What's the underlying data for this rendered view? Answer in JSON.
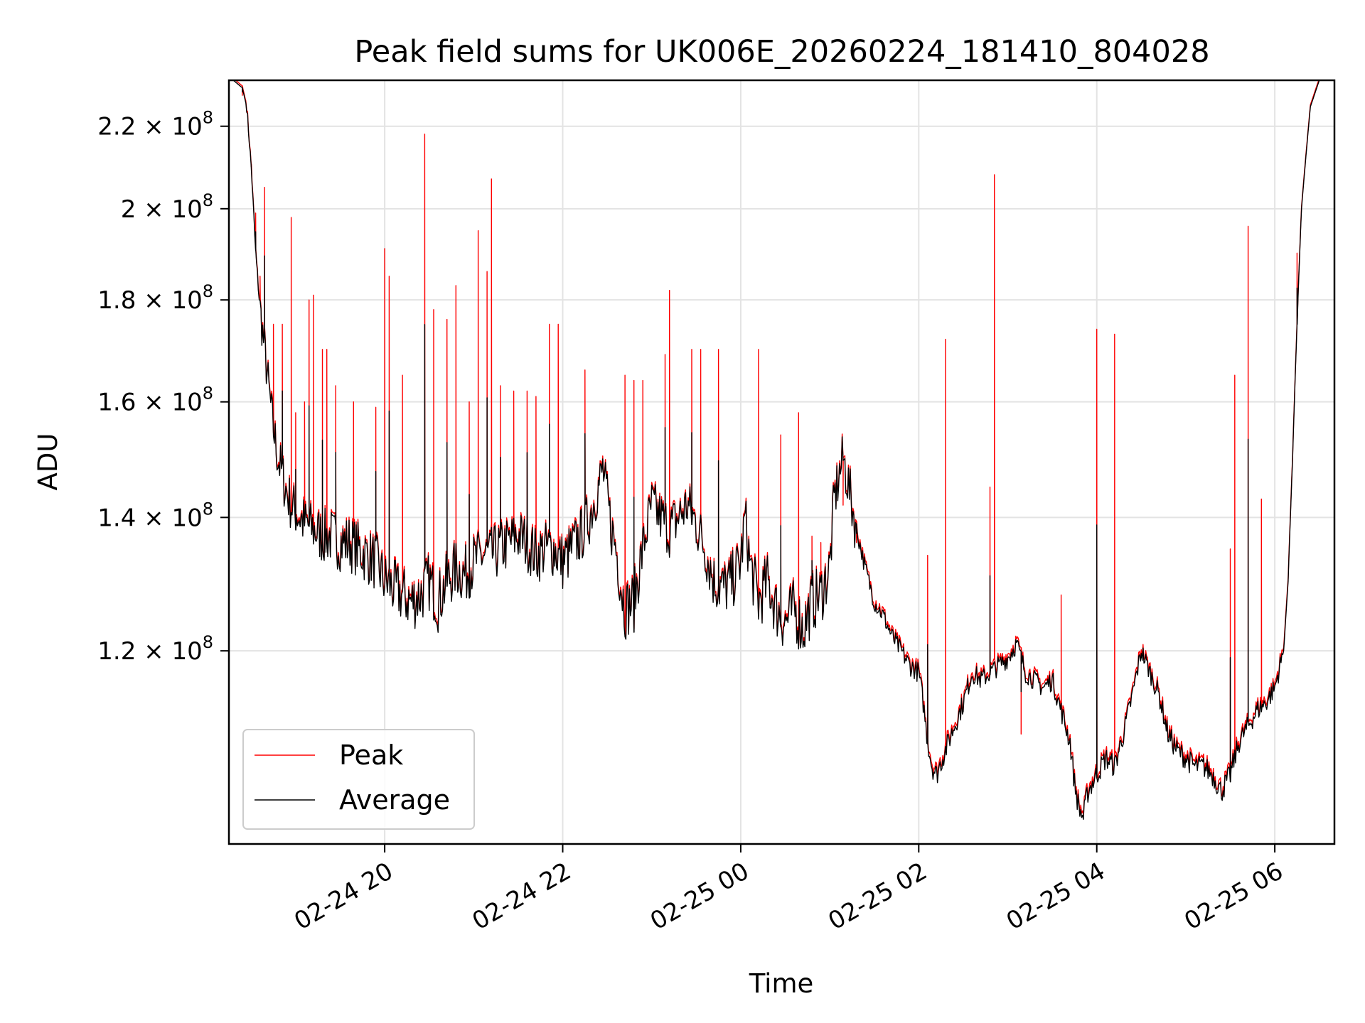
{
  "chart_data": {
    "type": "line",
    "title": "Peak field sums for UK006E_20260224_181410_804028",
    "xlabel": "Time",
    "ylabel": "ADU",
    "y_scale": "log",
    "ylim": [
      96000000,
      232000000
    ],
    "x_range_hours": [
      18.25,
      6.67
    ],
    "x_ticks": [
      {
        "label": "02-24 20",
        "hour": 20
      },
      {
        "label": "02-24 22",
        "hour": 22
      },
      {
        "label": "02-25 00",
        "hour": 24
      },
      {
        "label": "02-25 02",
        "hour": 26
      },
      {
        "label": "02-25 04",
        "hour": 28
      },
      {
        "label": "02-25 06",
        "hour": 30
      }
    ],
    "y_ticks": [
      {
        "mantissa": "1.2",
        "exponent": "8",
        "value": 120000000
      },
      {
        "mantissa": "1.4",
        "exponent": "8",
        "value": 140000000
      },
      {
        "mantissa": "1.6",
        "exponent": "8",
        "value": 160000000
      },
      {
        "mantissa": "1.8",
        "exponent": "8",
        "value": 180000000
      },
      {
        "mantissa": "2",
        "exponent": "8",
        "value": 200000000
      },
      {
        "mantissa": "2.2",
        "exponent": "8",
        "value": 220000000
      }
    ],
    "grid": true,
    "legend_position": "lower-left",
    "series": [
      {
        "name": "Peak",
        "color": "#ff0000",
        "baseline": "average",
        "spikes": [
          [
            18.4,
            228
          ],
          [
            18.5,
            210
          ],
          [
            18.55,
            199
          ],
          [
            18.6,
            185
          ],
          [
            18.65,
            205
          ],
          [
            18.75,
            175
          ],
          [
            18.85,
            175
          ],
          [
            18.95,
            198
          ],
          [
            19.0,
            158
          ],
          [
            19.1,
            160
          ],
          [
            19.15,
            180
          ],
          [
            19.2,
            181
          ],
          [
            19.3,
            170
          ],
          [
            19.35,
            170
          ],
          [
            19.45,
            163
          ],
          [
            19.65,
            160
          ],
          [
            19.9,
            159
          ],
          [
            20.0,
            191
          ],
          [
            20.05,
            185
          ],
          [
            20.2,
            165
          ],
          [
            20.45,
            218
          ],
          [
            20.55,
            178
          ],
          [
            20.7,
            176
          ],
          [
            20.8,
            183
          ],
          [
            20.95,
            160
          ],
          [
            21.05,
            195
          ],
          [
            21.15,
            186
          ],
          [
            21.2,
            207
          ],
          [
            21.3,
            163
          ],
          [
            21.45,
            162
          ],
          [
            21.6,
            162
          ],
          [
            21.7,
            161
          ],
          [
            21.85,
            175
          ],
          [
            21.95,
            175
          ],
          [
            22.25,
            166
          ],
          [
            22.7,
            165
          ],
          [
            22.8,
            164
          ],
          [
            22.9,
            164
          ],
          [
            23.15,
            169
          ],
          [
            23.2,
            182
          ],
          [
            23.45,
            170
          ],
          [
            23.55,
            170
          ],
          [
            23.75,
            170
          ],
          [
            24.2,
            170
          ],
          [
            24.45,
            154
          ],
          [
            24.65,
            158
          ],
          [
            24.8,
            137
          ],
          [
            24.9,
            136
          ],
          [
            25.3,
            136
          ],
          [
            25.15,
            142
          ],
          [
            26.1,
            134
          ],
          [
            26.3,
            172
          ],
          [
            26.8,
            145
          ],
          [
            26.85,
            208
          ],
          [
            27.15,
            109
          ],
          [
            27.6,
            128
          ],
          [
            28.0,
            174
          ],
          [
            28.2,
            173
          ],
          [
            29.5,
            135
          ],
          [
            29.55,
            165
          ],
          [
            29.7,
            196
          ],
          [
            29.85,
            143
          ],
          [
            30.25,
            190
          ]
        ]
      },
      {
        "name": "Average",
        "color": "#000000",
        "points": [
          [
            18.25,
            232
          ],
          [
            18.3,
            232
          ],
          [
            18.4,
            230
          ],
          [
            18.45,
            225
          ],
          [
            18.5,
            210
          ],
          [
            18.55,
            190
          ],
          [
            18.6,
            178
          ],
          [
            18.65,
            170
          ],
          [
            18.7,
            162
          ],
          [
            18.75,
            155
          ],
          [
            18.8,
            150
          ],
          [
            18.85,
            147
          ],
          [
            18.9,
            144
          ],
          [
            18.95,
            142
          ],
          [
            19.0,
            141
          ],
          [
            19.1,
            139
          ],
          [
            19.2,
            138
          ],
          [
            19.3,
            137
          ],
          [
            19.4,
            137
          ],
          [
            19.5,
            136
          ],
          [
            19.6,
            136
          ],
          [
            19.7,
            135
          ],
          [
            19.8,
            134
          ],
          [
            19.9,
            133
          ],
          [
            20.0,
            130
          ],
          [
            20.1,
            129
          ],
          [
            20.2,
            128
          ],
          [
            20.3,
            127
          ],
          [
            20.4,
            128
          ],
          [
            20.5,
            130
          ],
          [
            20.6,
            127
          ],
          [
            20.7,
            130
          ],
          [
            20.8,
            132
          ],
          [
            20.9,
            131
          ],
          [
            21.0,
            133
          ],
          [
            21.1,
            134
          ],
          [
            21.2,
            134
          ],
          [
            21.3,
            135
          ],
          [
            21.4,
            136
          ],
          [
            21.5,
            137
          ],
          [
            21.6,
            136
          ],
          [
            21.7,
            134
          ],
          [
            21.8,
            135
          ],
          [
            21.9,
            135
          ],
          [
            22.0,
            133
          ],
          [
            22.1,
            135
          ],
          [
            22.2,
            137
          ],
          [
            22.3,
            140
          ],
          [
            22.4,
            145
          ],
          [
            22.45,
            148
          ],
          [
            22.5,
            143
          ],
          [
            22.55,
            138
          ],
          [
            22.6,
            135
          ],
          [
            22.65,
            130
          ],
          [
            22.7,
            126
          ],
          [
            22.8,
            127
          ],
          [
            22.9,
            135
          ],
          [
            23.0,
            142
          ],
          [
            23.1,
            140
          ],
          [
            23.2,
            138
          ],
          [
            23.3,
            140
          ],
          [
            23.4,
            142
          ],
          [
            23.5,
            139
          ],
          [
            23.6,
            135
          ],
          [
            23.7,
            130
          ],
          [
            23.8,
            129
          ],
          [
            23.9,
            130
          ],
          [
            24.0,
            133
          ],
          [
            24.05,
            140
          ],
          [
            24.1,
            133
          ],
          [
            24.2,
            127
          ],
          [
            24.3,
            130
          ],
          [
            24.35,
            128
          ],
          [
            24.4,
            126
          ],
          [
            24.5,
            124
          ],
          [
            24.6,
            126
          ],
          [
            24.7,
            123
          ],
          [
            24.8,
            127
          ],
          [
            24.9,
            128
          ],
          [
            25.0,
            132
          ],
          [
            25.05,
            143
          ],
          [
            25.15,
            150
          ],
          [
            25.2,
            146
          ],
          [
            25.3,
            138
          ],
          [
            25.4,
            132
          ],
          [
            25.5,
            127
          ],
          [
            25.6,
            125
          ],
          [
            25.7,
            122
          ],
          [
            25.8,
            120
          ],
          [
            25.9,
            118
          ],
          [
            26.0,
            117
          ],
          [
            26.05,
            113
          ],
          [
            26.1,
            108
          ],
          [
            26.15,
            105
          ],
          [
            26.2,
            104
          ],
          [
            26.3,
            107
          ],
          [
            26.4,
            110
          ],
          [
            26.5,
            113
          ],
          [
            26.6,
            117
          ],
          [
            26.7,
            116
          ],
          [
            26.8,
            117
          ],
          [
            26.9,
            118
          ],
          [
            27.0,
            119
          ],
          [
            27.1,
            121
          ],
          [
            27.2,
            117
          ],
          [
            27.3,
            116
          ],
          [
            27.4,
            115
          ],
          [
            27.5,
            116
          ],
          [
            27.6,
            112
          ],
          [
            27.7,
            108
          ],
          [
            27.75,
            103
          ],
          [
            27.8,
            100
          ],
          [
            27.85,
            99
          ],
          [
            27.9,
            102
          ],
          [
            28.0,
            104
          ],
          [
            28.1,
            106
          ],
          [
            28.2,
            105
          ],
          [
            28.3,
            109
          ],
          [
            28.4,
            114
          ],
          [
            28.5,
            120
          ],
          [
            28.6,
            117
          ],
          [
            28.7,
            114
          ],
          [
            28.8,
            109
          ],
          [
            28.9,
            107
          ],
          [
            29.0,
            106
          ],
          [
            29.1,
            105
          ],
          [
            29.2,
            105
          ],
          [
            29.3,
            104
          ],
          [
            29.35,
            103
          ],
          [
            29.4,
            102
          ],
          [
            29.5,
            104
          ],
          [
            29.6,
            108
          ],
          [
            29.7,
            110
          ],
          [
            29.8,
            112
          ],
          [
            29.9,
            113
          ],
          [
            30.0,
            115
          ],
          [
            30.1,
            120
          ],
          [
            30.15,
            130
          ],
          [
            30.2,
            150
          ],
          [
            30.25,
            175
          ],
          [
            30.3,
            200
          ],
          [
            30.4,
            225
          ],
          [
            30.5,
            232
          ],
          [
            30.67,
            232
          ]
        ]
      }
    ]
  }
}
